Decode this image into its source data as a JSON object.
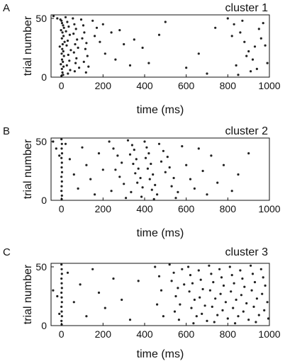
{
  "figure": {
    "ink_color": "#111111",
    "marker_color": "#222222"
  },
  "panels": [
    {
      "letter": "A",
      "title": "cluster 1",
      "xlabel": "time (ms)",
      "ylabel": "trial number"
    },
    {
      "letter": "B",
      "title": "cluster 2",
      "xlabel": "time (ms)",
      "ylabel": "trial number"
    },
    {
      "letter": "C",
      "title": "cluster 3",
      "xlabel": "time (ms)",
      "ylabel": "trial number"
    }
  ],
  "chart_data": [
    {
      "type": "scatter",
      "title": "cluster 1",
      "xlabel": "time (ms)",
      "ylabel": "trial number",
      "xlim": [
        -50,
        1000
      ],
      "ylim": [
        0,
        53
      ],
      "xticks": [
        0,
        200,
        400,
        600,
        800,
        1000
      ],
      "yticks": [
        0,
        50
      ],
      "grid": false,
      "description": "Spike raster: dense column of spikes near 0 ms, sparse spikes to ~150 ms, late burst 800-1000 ms",
      "points": [
        [
          -38,
          52
        ],
        [
          -20,
          50
        ],
        [
          -5,
          49
        ],
        [
          0,
          48
        ],
        [
          3,
          46
        ],
        [
          8,
          44
        ],
        [
          12,
          42
        ],
        [
          -2,
          40
        ],
        [
          5,
          38
        ],
        [
          10,
          35
        ],
        [
          2,
          33
        ],
        [
          15,
          30
        ],
        [
          6,
          28
        ],
        [
          -8,
          26
        ],
        [
          4,
          24
        ],
        [
          9,
          22
        ],
        [
          1,
          20
        ],
        [
          12,
          18
        ],
        [
          3,
          15
        ],
        [
          7,
          13
        ],
        [
          -3,
          11
        ],
        [
          10,
          9
        ],
        [
          2,
          7
        ],
        [
          5,
          4
        ],
        [
          8,
          2
        ],
        [
          0,
          1
        ],
        [
          20,
          51
        ],
        [
          28,
          47
        ],
        [
          35,
          43
        ],
        [
          22,
          39
        ],
        [
          40,
          36
        ],
        [
          30,
          31
        ],
        [
          25,
          27
        ],
        [
          45,
          23
        ],
        [
          33,
          19
        ],
        [
          38,
          14
        ],
        [
          26,
          10
        ],
        [
          42,
          6
        ],
        [
          31,
          3
        ],
        [
          55,
          50
        ],
        [
          62,
          45
        ],
        [
          70,
          41
        ],
        [
          58,
          37
        ],
        [
          75,
          32
        ],
        [
          66,
          28
        ],
        [
          80,
          25
        ],
        [
          60,
          21
        ],
        [
          72,
          16
        ],
        [
          68,
          12
        ],
        [
          85,
          8
        ],
        [
          64,
          5
        ],
        [
          95,
          49
        ],
        [
          105,
          44
        ],
        [
          110,
          38
        ],
        [
          100,
          33
        ],
        [
          120,
          29
        ],
        [
          115,
          24
        ],
        [
          125,
          18
        ],
        [
          108,
          13
        ],
        [
          130,
          9
        ],
        [
          118,
          4
        ],
        [
          150,
          48
        ],
        [
          170,
          42
        ],
        [
          160,
          35
        ],
        [
          185,
          30
        ],
        [
          200,
          45
        ],
        [
          210,
          20
        ],
        [
          240,
          38
        ],
        [
          260,
          15
        ],
        [
          280,
          40
        ],
        [
          300,
          28
        ],
        [
          330,
          10
        ],
        [
          350,
          32
        ],
        [
          390,
          25
        ],
        [
          420,
          12
        ],
        [
          470,
          36
        ],
        [
          500,
          47
        ],
        [
          600,
          8
        ],
        [
          660,
          20
        ],
        [
          700,
          3
        ],
        [
          740,
          42
        ],
        [
          800,
          50
        ],
        [
          830,
          45
        ],
        [
          860,
          38
        ],
        [
          880,
          30
        ],
        [
          900,
          22
        ],
        [
          920,
          15
        ],
        [
          940,
          7
        ],
        [
          960,
          33
        ],
        [
          980,
          27
        ],
        [
          850,
          2
        ],
        [
          870,
          48
        ],
        [
          950,
          41
        ],
        [
          990,
          12
        ],
        [
          910,
          5
        ],
        [
          820,
          35
        ],
        [
          890,
          18
        ],
        [
          970,
          46
        ],
        [
          930,
          26
        ],
        [
          840,
          10
        ]
      ]
    },
    {
      "type": "scatter",
      "title": "cluster 2",
      "xlabel": "time (ms)",
      "ylabel": "trial number",
      "xlim": [
        -50,
        1000
      ],
      "ylim": [
        0,
        53
      ],
      "xticks": [
        0,
        200,
        400,
        600,
        800,
        1000
      ],
      "yticks": [
        0,
        50
      ],
      "grid": false,
      "description": "Spike raster: column of spikes near 0 ms, broad burst 250-500 ms, sparse spikes to ~850 ms",
      "points": [
        [
          -40,
          50
        ],
        [
          -25,
          44
        ],
        [
          -10,
          38
        ],
        [
          0,
          52
        ],
        [
          2,
          48
        ],
        [
          1,
          44
        ],
        [
          3,
          40
        ],
        [
          0,
          36
        ],
        [
          2,
          32
        ],
        [
          1,
          28
        ],
        [
          3,
          24
        ],
        [
          0,
          20
        ],
        [
          2,
          16
        ],
        [
          1,
          12
        ],
        [
          0,
          8
        ],
        [
          2,
          4
        ],
        [
          1,
          1
        ],
        [
          20,
          48
        ],
        [
          40,
          35
        ],
        [
          60,
          22
        ],
        [
          80,
          10
        ],
        [
          100,
          45
        ],
        [
          120,
          30
        ],
        [
          140,
          18
        ],
        [
          160,
          5
        ],
        [
          180,
          40
        ],
        [
          200,
          26
        ],
        [
          230,
          50
        ],
        [
          250,
          44
        ],
        [
          270,
          38
        ],
        [
          290,
          32
        ],
        [
          260,
          26
        ],
        [
          280,
          20
        ],
        [
          300,
          14
        ],
        [
          240,
          8
        ],
        [
          310,
          2
        ],
        [
          320,
          51
        ],
        [
          340,
          47
        ],
        [
          350,
          43
        ],
        [
          330,
          39
        ],
        [
          360,
          35
        ],
        [
          345,
          31
        ],
        [
          370,
          27
        ],
        [
          355,
          23
        ],
        [
          380,
          19
        ],
        [
          365,
          15
        ],
        [
          390,
          11
        ],
        [
          335,
          7
        ],
        [
          385,
          3
        ],
        [
          400,
          50
        ],
        [
          410,
          45
        ],
        [
          420,
          40
        ],
        [
          405,
          36
        ],
        [
          430,
          31
        ],
        [
          415,
          27
        ],
        [
          440,
          22
        ],
        [
          425,
          18
        ],
        [
          450,
          13
        ],
        [
          435,
          9
        ],
        [
          460,
          5
        ],
        [
          445,
          1
        ],
        [
          470,
          48
        ],
        [
          490,
          42
        ],
        [
          510,
          37
        ],
        [
          480,
          33
        ],
        [
          520,
          28
        ],
        [
          500,
          24
        ],
        [
          540,
          19
        ],
        [
          530,
          12
        ],
        [
          560,
          7
        ],
        [
          550,
          2
        ],
        [
          580,
          46
        ],
        [
          600,
          30
        ],
        [
          620,
          18
        ],
        [
          640,
          10
        ],
        [
          660,
          44
        ],
        [
          680,
          25
        ],
        [
          700,
          5
        ],
        [
          720,
          38
        ],
        [
          750,
          15
        ],
        [
          780,
          30
        ],
        [
          820,
          8
        ],
        [
          850,
          22
        ],
        [
          900,
          40
        ]
      ]
    },
    {
      "type": "scatter",
      "title": "cluster 3",
      "xlabel": "time (ms)",
      "ylabel": "trial number",
      "xlim": [
        -50,
        1000
      ],
      "ylim": [
        0,
        53
      ],
      "xticks": [
        0,
        200,
        400,
        600,
        800,
        1000
      ],
      "yticks": [
        0,
        50
      ],
      "grid": false,
      "description": "Spike raster: column of spikes near 0 ms, sparse spikes to ~400 ms, dense sustained activity 450-1000 ms",
      "points": [
        [
          -40,
          30
        ],
        [
          -20,
          25
        ],
        [
          -10,
          10
        ],
        [
          0,
          52
        ],
        [
          1,
          48
        ],
        [
          2,
          44
        ],
        [
          0,
          40
        ],
        [
          1,
          36
        ],
        [
          2,
          32
        ],
        [
          0,
          28
        ],
        [
          1,
          24
        ],
        [
          2,
          20
        ],
        [
          0,
          16
        ],
        [
          1,
          12
        ],
        [
          2,
          8
        ],
        [
          0,
          4
        ],
        [
          1,
          1
        ],
        [
          30,
          45
        ],
        [
          60,
          20
        ],
        [
          90,
          35
        ],
        [
          120,
          8
        ],
        [
          150,
          48
        ],
        [
          180,
          28
        ],
        [
          210,
          15
        ],
        [
          250,
          40
        ],
        [
          290,
          22
        ],
        [
          330,
          5
        ],
        [
          370,
          38
        ],
        [
          450,
          50
        ],
        [
          470,
          42
        ],
        [
          480,
          30
        ],
        [
          460,
          18
        ],
        [
          490,
          8
        ],
        [
          520,
          52
        ],
        [
          540,
          45
        ],
        [
          530,
          38
        ],
        [
          560,
          32
        ],
        [
          550,
          25
        ],
        [
          570,
          18
        ],
        [
          545,
          12
        ],
        [
          565,
          5
        ],
        [
          580,
          48
        ],
        [
          590,
          35
        ],
        [
          610,
          50
        ],
        [
          620,
          43
        ],
        [
          630,
          36
        ],
        [
          615,
          29
        ],
        [
          640,
          22
        ],
        [
          625,
          15
        ],
        [
          650,
          8
        ],
        [
          635,
          2
        ],
        [
          660,
          47
        ],
        [
          670,
          39
        ],
        [
          680,
          31
        ],
        [
          665,
          24
        ],
        [
          690,
          17
        ],
        [
          675,
          10
        ],
        [
          700,
          4
        ],
        [
          710,
          51
        ],
        [
          720,
          44
        ],
        [
          730,
          37
        ],
        [
          715,
          30
        ],
        [
          740,
          23
        ],
        [
          725,
          16
        ],
        [
          750,
          9
        ],
        [
          735,
          3
        ],
        [
          760,
          48
        ],
        [
          770,
          41
        ],
        [
          780,
          34
        ],
        [
          765,
          27
        ],
        [
          790,
          20
        ],
        [
          775,
          13
        ],
        [
          800,
          6
        ],
        [
          810,
          50
        ],
        [
          820,
          43
        ],
        [
          830,
          36
        ],
        [
          815,
          29
        ],
        [
          840,
          22
        ],
        [
          825,
          15
        ],
        [
          850,
          8
        ],
        [
          835,
          2
        ],
        [
          860,
          47
        ],
        [
          870,
          40
        ],
        [
          880,
          33
        ],
        [
          865,
          26
        ],
        [
          890,
          19
        ],
        [
          875,
          12
        ],
        [
          900,
          5
        ],
        [
          910,
          51
        ],
        [
          920,
          44
        ],
        [
          930,
          37
        ],
        [
          915,
          30
        ],
        [
          940,
          23
        ],
        [
          925,
          16
        ],
        [
          950,
          9
        ],
        [
          935,
          3
        ],
        [
          960,
          48
        ],
        [
          970,
          41
        ],
        [
          980,
          34
        ],
        [
          965,
          27
        ],
        [
          990,
          20
        ],
        [
          975,
          13
        ],
        [
          995,
          6
        ]
      ]
    }
  ]
}
